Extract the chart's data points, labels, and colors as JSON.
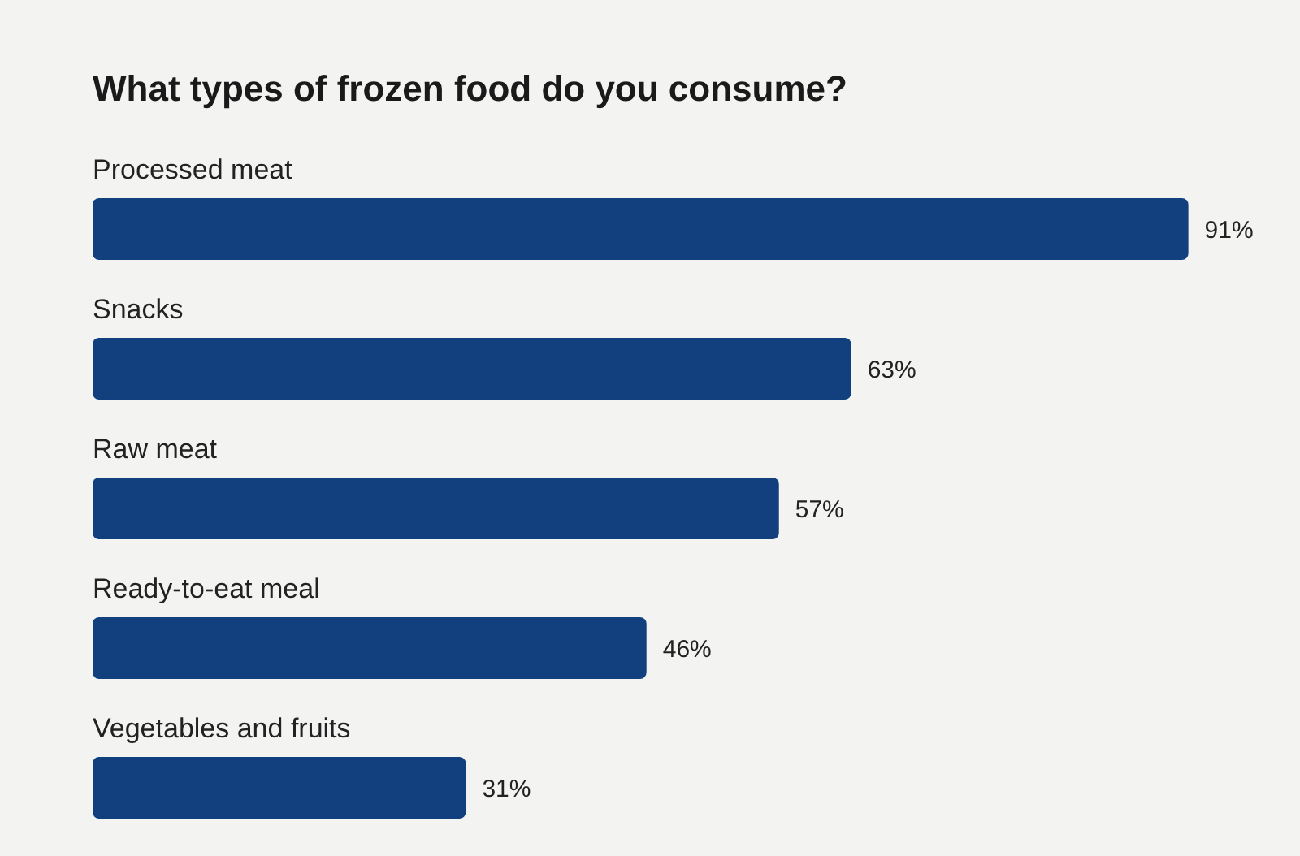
{
  "chart_data": {
    "type": "bar",
    "orientation": "horizontal",
    "title": "What types of frozen food do you consume?",
    "categories": [
      "Processed meat",
      "Snacks",
      "Raw meat",
      "Ready-to-eat meal",
      "Vegetables and fruits"
    ],
    "values": [
      91,
      63,
      57,
      46,
      31
    ],
    "value_labels": [
      "91%",
      "63%",
      "57%",
      "46%",
      "31%"
    ],
    "color": "#123f7d",
    "xlim": [
      0,
      100
    ]
  }
}
